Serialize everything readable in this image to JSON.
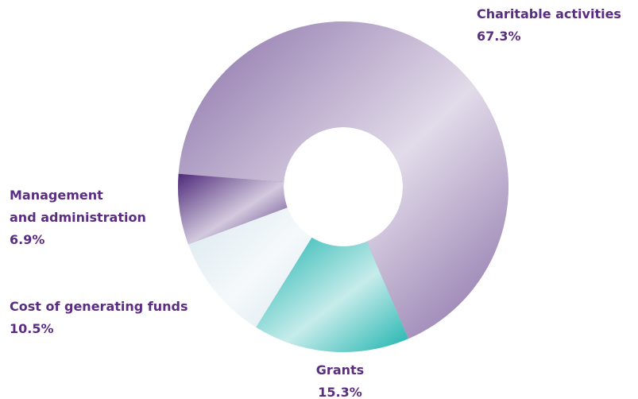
{
  "chart_data": {
    "type": "donut",
    "categories": [
      "Charitable activities",
      "Grants",
      "Cost of generating funds",
      "Management\nand administration"
    ],
    "values": [
      67.3,
      15.3,
      10.5,
      6.9
    ],
    "value_labels": [
      "67.3%",
      "15.3%",
      "10.5%",
      "6.9%"
    ],
    "colors": [
      "#8a70a8",
      "#1db3ae",
      "#d9e8ef",
      "#4e2a7a"
    ]
  }
}
